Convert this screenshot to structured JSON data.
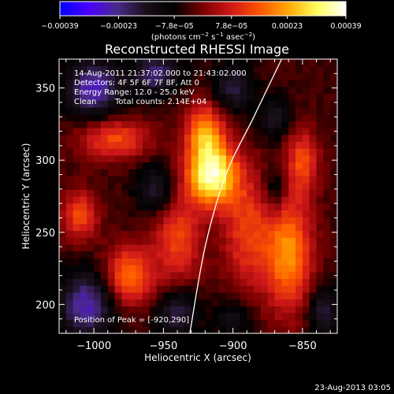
{
  "chart_data": {
    "type": "heatmap",
    "title": "Reconstructed RHESSI Image",
    "xlabel": "Heliocentric X (arcsec)",
    "ylabel": "Heliocentric Y (arcsec)",
    "xlim": [
      -1025,
      -825
    ],
    "ylim": [
      180,
      370
    ],
    "x_ticks": [
      -1000,
      -950,
      -900,
      -850
    ],
    "x_tick_labels": [
      "−1000",
      "−950",
      "−900",
      "−850"
    ],
    "y_ticks": [
      200,
      250,
      300,
      350
    ],
    "y_tick_labels": [
      "200",
      "250",
      "300",
      "350"
    ],
    "colorbar": {
      "range": [
        -0.00039,
        0.00039
      ],
      "ticks": [
        -0.00039,
        -0.00023,
        -7.8e-05,
        7.8e-05,
        0.00023,
        0.00039
      ],
      "tick_labels": [
        "−0.00039",
        "−0.00023",
        "−7.8e−05",
        "7.8e−05",
        "0.00023",
        "0.00039"
      ],
      "units_prefix": "(photons cm",
      "units_exp1": "−2",
      "units_mid1": " s",
      "units_exp2": "−1",
      "units_mid2": " asec",
      "units_exp3": "−2",
      "units_suffix": ")",
      "colormap": [
        "#0000ff",
        "#4a00ff",
        "#4a2a8a",
        "#1a0f1a",
        "#000000",
        "#7a0000",
        "#d01818",
        "#ff5500",
        "#ffaa00",
        "#ffff60",
        "#ffffff"
      ]
    },
    "sources": [
      {
        "x": -915,
        "y": 290,
        "peak": 0.00039,
        "sx": 13,
        "sy": 15
      },
      {
        "x": -920,
        "y": 320,
        "peak": 0.00024,
        "sx": 10,
        "sy": 14
      },
      {
        "x": -985,
        "y": 315,
        "peak": 0.00018,
        "sx": 18,
        "sy": 10
      },
      {
        "x": -975,
        "y": 220,
        "peak": 0.00023,
        "sx": 12,
        "sy": 14
      },
      {
        "x": -940,
        "y": 245,
        "peak": 0.00017,
        "sx": 12,
        "sy": 22
      },
      {
        "x": -890,
        "y": 250,
        "peak": 0.00016,
        "sx": 12,
        "sy": 28
      },
      {
        "x": -860,
        "y": 235,
        "peak": 0.00025,
        "sx": 12,
        "sy": 28
      },
      {
        "x": -850,
        "y": 300,
        "peak": 0.00017,
        "sx": 8,
        "sy": 16
      },
      {
        "x": -1010,
        "y": 262,
        "peak": 0.00018,
        "sx": 9,
        "sy": 12
      },
      {
        "x": -1000,
        "y": 350,
        "peak": -0.00023,
        "sx": 14,
        "sy": 14
      },
      {
        "x": -955,
        "y": 360,
        "peak": -0.00018,
        "sx": 12,
        "sy": 10
      },
      {
        "x": -1005,
        "y": 200,
        "peak": -0.00022,
        "sx": 14,
        "sy": 16
      },
      {
        "x": -940,
        "y": 195,
        "peak": -0.00016,
        "sx": 10,
        "sy": 12
      },
      {
        "x": -900,
        "y": 350,
        "peak": -0.00014,
        "sx": 10,
        "sy": 12
      },
      {
        "x": -870,
        "y": 330,
        "peak": -0.00012,
        "sx": 8,
        "sy": 10
      },
      {
        "x": -900,
        "y": 190,
        "peak": -0.0001,
        "sx": 10,
        "sy": 10
      },
      {
        "x": -835,
        "y": 195,
        "peak": -0.00015,
        "sx": 8,
        "sy": 12
      },
      {
        "x": -955,
        "y": 280,
        "peak": -0.00014,
        "sx": 10,
        "sy": 12
      },
      {
        "x": -870,
        "y": 280,
        "peak": -0.0001,
        "sx": 6,
        "sy": 12
      }
    ],
    "limb_curve": [
      {
        "x": -931,
        "y": 180
      },
      {
        "x": -920,
        "y": 240
      },
      {
        "x": -905,
        "y": 290
      },
      {
        "x": -885,
        "y": 330
      },
      {
        "x": -865,
        "y": 370
      }
    ],
    "info": {
      "time_range": "14-Aug-2011 21:37:02.000 to 21:43:02.000",
      "detectors": "Detectors: 4F 5F 6F 7F 8F, Att 0",
      "energy": "Energy Range: 12.0 - 25.0 keV",
      "method": "Clean",
      "counts": "Total counts: 2.14E+04",
      "peak": "Position of Peak = [-920,290]"
    },
    "timestamp": "23-Aug-2013 03:05"
  }
}
